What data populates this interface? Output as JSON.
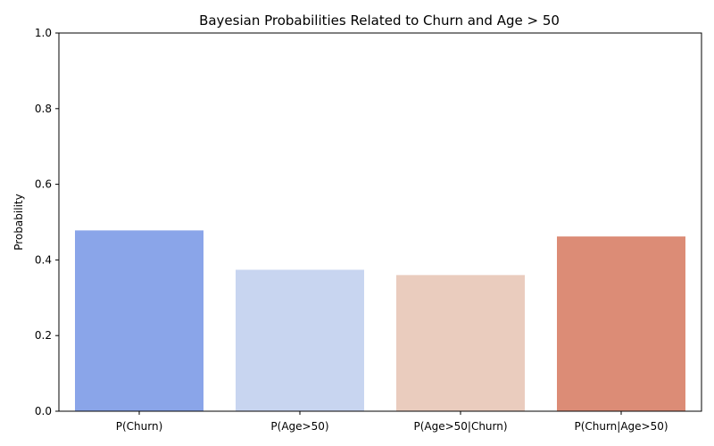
{
  "chart_data": {
    "type": "bar",
    "title": "Bayesian Probabilities Related to Churn and Age > 50",
    "xlabel": "",
    "ylabel": "Probability",
    "categories": [
      "P(Churn)",
      "P(Age>50)",
      "P(Age>50|Churn)",
      "P(Churn|Age>50)"
    ],
    "values": [
      0.478,
      0.374,
      0.36,
      0.462
    ],
    "colors": [
      "#8aa5e9",
      "#c8d5f0",
      "#eaccbe",
      "#dc8c76"
    ],
    "ylim": [
      0,
      1.0
    ],
    "yticks": [
      0.0,
      0.2,
      0.4,
      0.6,
      0.8,
      1.0
    ],
    "ytick_labels": [
      "0.0",
      "0.2",
      "0.4",
      "0.6",
      "0.8",
      "1.0"
    ],
    "grid": false,
    "legend": "none"
  }
}
